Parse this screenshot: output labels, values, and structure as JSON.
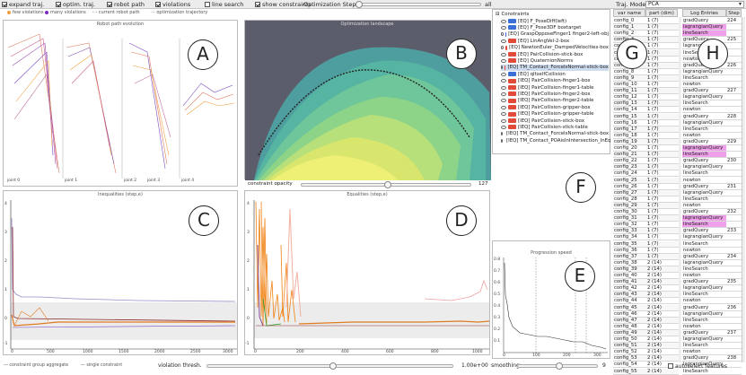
{
  "toolbar": {
    "items": [
      {
        "label": "expand traj.",
        "checked": true
      },
      {
        "label": "optim. traj.",
        "checked": true
      },
      {
        "label": "robot path",
        "checked": true
      },
      {
        "label": "violations",
        "checked": true
      },
      {
        "label": "line search",
        "checked": false
      },
      {
        "label": "show constraints",
        "checked": true
      }
    ],
    "optimization_step_label": "Optimization Step",
    "optimization_step_end": "all",
    "traj_mode_label": "Traj. Mode",
    "traj_mode_value": "PCA"
  },
  "legend": {
    "few_violations": "few violations",
    "many_violations": "many violations",
    "current_robot_path": "current robot path",
    "optimization_trajectory": "optimization trajectory"
  },
  "panels": {
    "robot_path_title": "Robot path evolution",
    "landscape_title": "Optimization landscape",
    "inequalities_title": "Inequalities (step,e)",
    "equalities_title": "Equalities (step,e)",
    "progression_title": "Progression speed",
    "joint_labels": [
      "joint 0",
      "joint 1",
      "joint 2",
      "joint 3",
      "joint 4"
    ],
    "constraint_opacity_label": "constraint opacity",
    "constraint_opacity_value": "127",
    "violation_thresh_label": "violation thresh.",
    "violation_thresh_value": "1.00e+00",
    "smoothing_label": "smoothing:",
    "smoothing_value": "9",
    "bottom_legend_a": "constraint group aggregate",
    "bottom_legend_b": "single constraint",
    "autoselect_label": "autoselect features"
  },
  "markers": [
    "A",
    "B",
    "C",
    "D",
    "E",
    "F",
    "G",
    "H"
  ],
  "constraints": {
    "root": "Constraints",
    "items": [
      {
        "label": "[EQ] F_PoseDiff(left)",
        "color": "#3b6fd8"
      },
      {
        "label": "[EQ] F_Pose3DF boxtarget",
        "color": "#3b6fd8"
      },
      {
        "label": "[EQ] GraspOpposeFinger1 finger2-left-obj",
        "color": "#3b6fd8"
      },
      {
        "label": "[EQ] LinAngVel-2-box",
        "color": "#e24a3a"
      },
      {
        "label": "[EQ] NewtonEuler_DampedVelocities-box",
        "color": "#e24a3a"
      },
      {
        "label": "[EQ] PairCollision-stick-box",
        "color": "#e24a3a"
      },
      {
        "label": "[EQ] QuaternionNorms",
        "color": "#e24a3a"
      },
      {
        "label": "[EQ] TM_Contact_ForceIsNormal-stick-box",
        "color": "#e24a3a",
        "selected": true
      },
      {
        "label": "[EQ] qItselfCollision",
        "color": "#3b6fd8"
      },
      {
        "label": "[IEQ] PairCollision-finger1-box",
        "color": "#e24a3a"
      },
      {
        "label": "[IEQ] PairCollision-finger1-table",
        "color": "#e24a3a"
      },
      {
        "label": "[IEQ] PairCollision-finger2-box",
        "color": "#e24a3a"
      },
      {
        "label": "[IEQ] PairCollision-finger2-table",
        "color": "#e24a3a"
      },
      {
        "label": "[IEQ] PairCollision-gripper-box",
        "color": "#e24a3a"
      },
      {
        "label": "[IEQ] PairCollision-gripper-table",
        "color": "#e24a3a"
      },
      {
        "label": "[IEQ] PairCollision-stick-box",
        "color": "#e24a3a"
      },
      {
        "label": "[IEQ] PairCollision-stick-table",
        "color": "#e24a3a"
      },
      {
        "label": "[IEQ] TM_Contact_ForceIsNormal-stick-box",
        "color": "#e24a3a"
      },
      {
        "label": "[IEQ] TM_Contact_POAisInIntersection_InEq",
        "color": "#e24a3a"
      }
    ]
  },
  "table": {
    "headers": [
      "var name",
      "part (dim)",
      "Log Entries",
      "Step"
    ],
    "rows": [
      [
        "config_0",
        "1 (7)",
        "gradQuery",
        "224",
        "g"
      ],
      [
        "config_1",
        "1 (7)",
        "lagrangianQuery",
        "",
        "m"
      ],
      [
        "config_2",
        "1 (7)",
        "lineSearch",
        "",
        "m"
      ],
      [
        "config_3",
        "1 (7)",
        "gradQuery",
        "225",
        "g"
      ],
      [
        "config_4",
        "1 (7)",
        "lagrangianQuery",
        "",
        "g"
      ],
      [
        "config_5",
        "1 (7)",
        "lineSearch",
        "",
        "g"
      ],
      [
        "config_6",
        "1 (7)",
        "newton",
        "",
        "g"
      ],
      [
        "config_7",
        "1 (7)",
        "gradQuery",
        "226",
        "g"
      ],
      [
        "config_8",
        "1 (7)",
        "lagrangianQuery",
        "",
        "g"
      ],
      [
        "config_9",
        "1 (7)",
        "lineSearch",
        "",
        "g"
      ],
      [
        "config_10",
        "1 (7)",
        "newton",
        "",
        "g"
      ],
      [
        "config_11",
        "1 (7)",
        "gradQuery",
        "227",
        "g"
      ],
      [
        "config_12",
        "1 (7)",
        "lagrangianQuery",
        "",
        "g"
      ],
      [
        "config_13",
        "1 (7)",
        "lineSearch",
        "",
        "g"
      ],
      [
        "config_14",
        "1 (7)",
        "newton",
        "",
        "g"
      ],
      [
        "config_15",
        "1 (7)",
        "gradQuery",
        "228",
        "g"
      ],
      [
        "config_16",
        "1 (7)",
        "lagrangianQuery",
        "",
        "g"
      ],
      [
        "config_17",
        "1 (7)",
        "lineSearch",
        "",
        "g"
      ],
      [
        "config_18",
        "1 (7)",
        "newton",
        "",
        "g"
      ],
      [
        "config_19",
        "1 (7)",
        "gradQuery",
        "229",
        "g"
      ],
      [
        "config_20",
        "1 (7)",
        "lagrangianQuery",
        "",
        "m"
      ],
      [
        "config_21",
        "1 (7)",
        "lineSearch",
        "",
        "m"
      ],
      [
        "config_22",
        "1 (7)",
        "gradQuery",
        "230",
        "g"
      ],
      [
        "config_23",
        "1 (7)",
        "lagrangianQuery",
        "",
        "g"
      ],
      [
        "config_24",
        "1 (7)",
        "lineSearch",
        "",
        "g"
      ],
      [
        "config_25",
        "1 (7)",
        "newton",
        "",
        "g"
      ],
      [
        "config_26",
        "1 (7)",
        "gradQuery",
        "231",
        "g"
      ],
      [
        "config_27",
        "1 (7)",
        "lagrangianQuery",
        "",
        "g"
      ],
      [
        "config_28",
        "1 (7)",
        "lineSearch",
        "",
        "g"
      ],
      [
        "config_29",
        "1 (7)",
        "newton",
        "",
        "g"
      ],
      [
        "config_30",
        "1 (7)",
        "gradQuery",
        "232",
        "g"
      ],
      [
        "config_31",
        "1 (7)",
        "lagrangianQuery",
        "",
        "m"
      ],
      [
        "config_32",
        "1 (7)",
        "lineSearch",
        "",
        "m"
      ],
      [
        "config_33",
        "1 (7)",
        "gradQuery",
        "233",
        "g"
      ],
      [
        "config_34",
        "1 (7)",
        "lagrangianQuery",
        "",
        "g"
      ],
      [
        "config_35",
        "1 (7)",
        "lineSearch",
        "",
        "g"
      ],
      [
        "config_36",
        "1 (7)",
        "newton",
        "",
        "g"
      ],
      [
        "config_37",
        "1 (7)",
        "gradQuery",
        "234",
        "g"
      ],
      [
        "config_38",
        "2 (14)",
        "lagrangianQuery",
        "",
        "g"
      ],
      [
        "config_39",
        "2 (14)",
        "lineSearch",
        "",
        "g"
      ],
      [
        "config_40",
        "2 (14)",
        "newton",
        "",
        "g"
      ],
      [
        "config_41",
        "2 (14)",
        "gradQuery",
        "235",
        "g"
      ],
      [
        "config_42",
        "2 (14)",
        "lagrangianQuery",
        "",
        "g"
      ],
      [
        "config_43",
        "2 (14)",
        "lineSearch",
        "",
        "g"
      ],
      [
        "config_44",
        "2 (14)",
        "newton",
        "",
        "g"
      ],
      [
        "config_45",
        "2 (14)",
        "gradQuery",
        "236",
        "g"
      ],
      [
        "config_46",
        "2 (14)",
        "lagrangianQuery",
        "",
        "g"
      ],
      [
        "config_47",
        "2 (14)",
        "lineSearch",
        "",
        "g"
      ],
      [
        "config_48",
        "2 (14)",
        "newton",
        "",
        "g"
      ],
      [
        "config_49",
        "2 (14)",
        "gradQuery",
        "237",
        "g"
      ],
      [
        "config_50",
        "2 (14)",
        "lagrangianQuery",
        "",
        "g"
      ],
      [
        "config_51",
        "2 (14)",
        "lineSearch",
        "",
        "g"
      ],
      [
        "config_52",
        "2 (14)",
        "newton",
        "",
        "g"
      ],
      [
        "config_53",
        "2 (14)",
        "gradQuery",
        "238",
        "g"
      ],
      [
        "config_54",
        "2 (14)",
        "lagrangianQuery",
        "",
        "g"
      ],
      [
        "config_55",
        "2 (14)",
        "lineSearch",
        "",
        "g"
      ]
    ]
  },
  "axis": {
    "ineq_y": [
      "4",
      "3",
      "2",
      "1",
      "0",
      "-1"
    ],
    "ineq_x": [
      "0",
      "500",
      "1000",
      "1500",
      "2000",
      "2500",
      "3000"
    ],
    "eq_y": [
      "4",
      "3",
      "2",
      "1",
      "0",
      "-1"
    ],
    "eq_x": [
      "0",
      "200",
      "400",
      "600",
      "800",
      "1000"
    ],
    "prog_y": [
      "0.8",
      "0.7",
      "0.6",
      "0.5",
      "0.4",
      "0.3",
      "0.2",
      "0.1"
    ],
    "prog_x": [
      "0",
      "100",
      "200",
      "300"
    ]
  }
}
